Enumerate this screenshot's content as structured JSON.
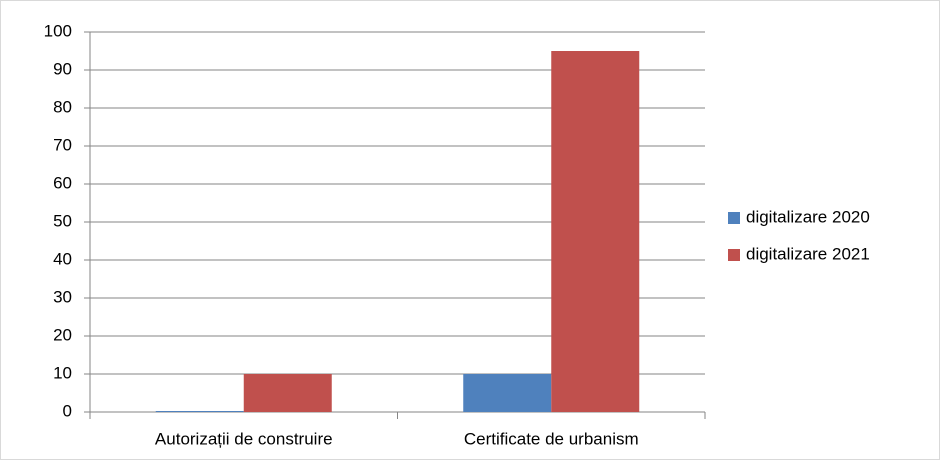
{
  "chart_data": {
    "type": "bar",
    "categories": [
      "Autorizații de construire",
      "Certificate de urbanism"
    ],
    "series": [
      {
        "name": "digitalizare 2020",
        "color": "#4f81bd",
        "values": [
          0,
          10
        ]
      },
      {
        "name": "digitalizare 2021",
        "color": "#c0504d",
        "values": [
          10,
          95
        ]
      }
    ],
    "ylim": [
      0,
      100
    ],
    "yticks": [
      0,
      10,
      20,
      30,
      40,
      50,
      60,
      70,
      80,
      90,
      100
    ],
    "grid": true,
    "legend": "right"
  }
}
